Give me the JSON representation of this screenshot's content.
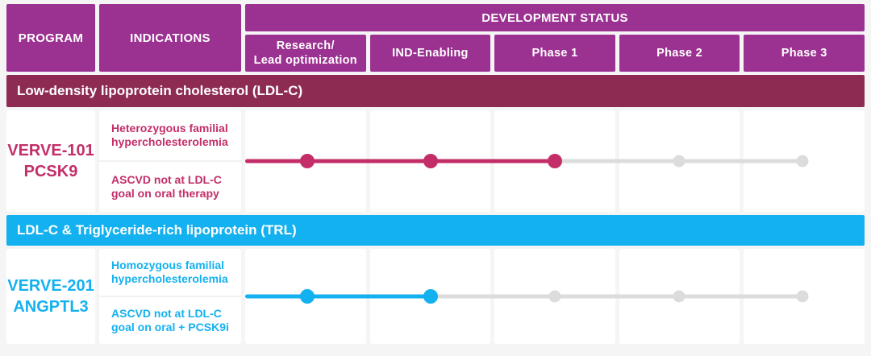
{
  "colors": {
    "header_bg": "#9b3190",
    "page_bg": "#f5f5f6",
    "cell_bg": "#ffffff",
    "inactive": "#dcdcdc"
  },
  "header": {
    "program": "PROGRAM",
    "indications": "INDICATIONS",
    "development_status": "DEVELOPMENT STATUS",
    "phases": [
      "Research/\nLead optimization",
      "IND-Enabling",
      "Phase 1",
      "Phase 2",
      "Phase 3"
    ]
  },
  "sections": [
    {
      "title": "Low-density lipoprotein cholesterol (LDL-C)",
      "band_color": "#8d2b53",
      "accent": "#c32e69",
      "program": {
        "name": "VERVE-101",
        "target": "PCSK9"
      },
      "indications": [
        "Heterozygous familial hypercholesterolemia",
        "ASCVD not at LDL-C goal on oral therapy"
      ],
      "progress_phase": "Phase 1",
      "progress_index": 2
    },
    {
      "title": "LDL-C & Triglyceride-rich lipoprotein (TRL)",
      "band_color": "#14b1f0",
      "accent": "#14b1f0",
      "program": {
        "name": "VERVE-201",
        "target": "ANGPTL3"
      },
      "indications": [
        "Homozygous familial hypercholesterolemia",
        "ASCVD not at LDL-C goal on oral + PCSK9i"
      ],
      "progress_phase": "IND-Enabling",
      "progress_index": 1
    }
  ]
}
